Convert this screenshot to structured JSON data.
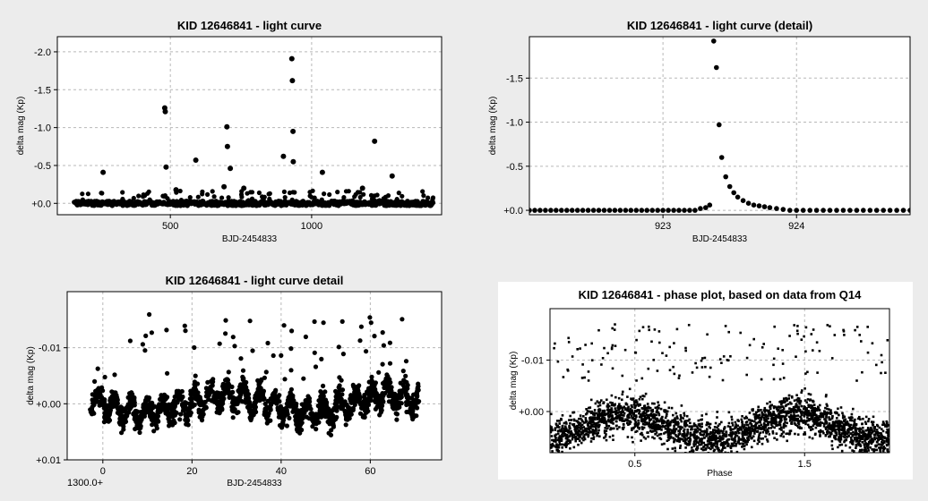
{
  "chart_data": [
    {
      "type": "scatter",
      "title": "KID 12646841 - light curve",
      "xlabel": "BJD-2454833",
      "ylabel": "delta mag (Kp)",
      "xlim": [
        100,
        1460
      ],
      "ylim": [
        -2.2,
        0.15
      ],
      "y_inverted": true,
      "xticks": [
        {
          "v": 500,
          "label": "500"
        },
        {
          "v": 1000,
          "label": "1000"
        }
      ],
      "yticks": [
        {
          "v": -2.0,
          "label": "-2.0"
        },
        {
          "v": -1.5,
          "label": "-1.5"
        },
        {
          "v": -1.0,
          "label": "-1.0"
        },
        {
          "v": -0.5,
          "label": "-0.5"
        },
        {
          "v": 0.0,
          "label": "+0.0"
        }
      ],
      "grid": true,
      "baseline": {
        "x_range": [
          160,
          1430
        ],
        "y_center": 0.0,
        "spread": 0.03
      },
      "points": [
        [
          262,
          -0.41
        ],
        [
          480,
          -1.26
        ],
        [
          482,
          -1.21
        ],
        [
          485,
          -0.48
        ],
        [
          590,
          -0.57
        ],
        [
          700,
          -1.01
        ],
        [
          702,
          -0.75
        ],
        [
          712,
          -0.46
        ],
        [
          900,
          -0.62
        ],
        [
          930,
          -1.91
        ],
        [
          932,
          -1.62
        ],
        [
          934,
          -0.95
        ],
        [
          935,
          -0.55
        ],
        [
          1038,
          -0.41
        ],
        [
          1223,
          -0.82
        ],
        [
          1285,
          -0.36
        ],
        [
          520,
          -0.18
        ],
        [
          690,
          -0.22
        ],
        [
          760,
          -0.2
        ],
        [
          1180,
          -0.2
        ]
      ]
    },
    {
      "type": "scatter",
      "title": "KID 12646841 - light curve (detail)",
      "xlabel": "BJD-2454833",
      "ylabel": "delta mag (Kp)",
      "xlim": [
        922.0,
        924.85
      ],
      "ylim": [
        -1.97,
        0.05
      ],
      "y_inverted": true,
      "xticks": [
        {
          "v": 923,
          "label": "923"
        },
        {
          "v": 924,
          "label": "924"
        }
      ],
      "yticks": [
        {
          "v": -1.5,
          "label": "-1.5"
        },
        {
          "v": -1.0,
          "label": "-1.0"
        },
        {
          "v": -0.5,
          "label": "-0.5"
        },
        {
          "v": 0.0,
          "label": "+0.0"
        }
      ],
      "grid": true,
      "points": [
        [
          922.0,
          0.0
        ],
        [
          922.04,
          0.0
        ],
        [
          922.08,
          0.0
        ],
        [
          922.12,
          0.0
        ],
        [
          922.16,
          0.0
        ],
        [
          922.2,
          0.0
        ],
        [
          922.24,
          0.0
        ],
        [
          922.28,
          0.0
        ],
        [
          922.32,
          0.0
        ],
        [
          922.36,
          0.0
        ],
        [
          922.4,
          0.0
        ],
        [
          922.44,
          0.0
        ],
        [
          922.48,
          0.0
        ],
        [
          922.52,
          0.0
        ],
        [
          922.56,
          0.0
        ],
        [
          922.6,
          0.0
        ],
        [
          922.64,
          0.0
        ],
        [
          922.68,
          0.0
        ],
        [
          922.72,
          0.0
        ],
        [
          922.76,
          0.0
        ],
        [
          922.8,
          0.0
        ],
        [
          922.84,
          0.0
        ],
        [
          922.88,
          0.0
        ],
        [
          922.92,
          0.0
        ],
        [
          922.96,
          0.0
        ],
        [
          923.0,
          0.0
        ],
        [
          923.04,
          0.0
        ],
        [
          923.08,
          0.0
        ],
        [
          923.12,
          0.0
        ],
        [
          923.16,
          0.0
        ],
        [
          923.2,
          0.0
        ],
        [
          923.24,
          0.0
        ],
        [
          923.28,
          -0.02
        ],
        [
          923.32,
          -0.03
        ],
        [
          923.35,
          -0.06
        ],
        [
          923.38,
          -1.92
        ],
        [
          923.4,
          -1.62
        ],
        [
          923.42,
          -0.97
        ],
        [
          923.44,
          -0.6
        ],
        [
          923.47,
          -0.38
        ],
        [
          923.5,
          -0.27
        ],
        [
          923.53,
          -0.2
        ],
        [
          923.56,
          -0.15
        ],
        [
          923.6,
          -0.11
        ],
        [
          923.64,
          -0.08
        ],
        [
          923.68,
          -0.06
        ],
        [
          923.72,
          -0.05
        ],
        [
          923.76,
          -0.04
        ],
        [
          923.8,
          -0.03
        ],
        [
          923.85,
          -0.02
        ],
        [
          923.9,
          -0.01
        ],
        [
          923.95,
          0.0
        ],
        [
          924.0,
          0.0
        ],
        [
          924.05,
          0.0
        ],
        [
          924.1,
          0.0
        ],
        [
          924.15,
          0.0
        ],
        [
          924.2,
          0.0
        ],
        [
          924.25,
          0.0
        ],
        [
          924.3,
          0.0
        ],
        [
          924.35,
          0.0
        ],
        [
          924.4,
          0.0
        ],
        [
          924.45,
          0.0
        ],
        [
          924.5,
          0.0
        ],
        [
          924.55,
          0.0
        ],
        [
          924.6,
          0.0
        ],
        [
          924.65,
          0.0
        ],
        [
          924.7,
          0.0
        ],
        [
          924.75,
          0.0
        ],
        [
          924.8,
          0.0
        ],
        [
          924.85,
          0.0
        ]
      ]
    },
    {
      "type": "scatter",
      "title": "KID 12646841 - light curve detail",
      "xlabel": "BJD-2454833",
      "ylabel": "delta mag (Kp)",
      "x_offset_label": "1300.0+",
      "xlim": [
        -8,
        76
      ],
      "ylim": [
        -0.02,
        0.01
      ],
      "y_inverted": true,
      "xticks": [
        {
          "v": 0,
          "label": "0"
        },
        {
          "v": 20,
          "label": "20"
        },
        {
          "v": 40,
          "label": "40"
        },
        {
          "v": 60,
          "label": "60"
        }
      ],
      "yticks": [
        {
          "v": -0.01,
          "label": "-0.01"
        },
        {
          "v": 0.0,
          "label": "+0.00"
        },
        {
          "v": 0.01,
          "label": "+0.01"
        }
      ],
      "grid": true,
      "model": {
        "x_range": [
          -3,
          71
        ],
        "amplitude": 0.0018,
        "period": 3.6,
        "trend_amplitude": 0.0015,
        "trend_period": 37,
        "noise": 0.0016,
        "n_points": 1500,
        "flare_count": 60,
        "flare_max": -0.016
      }
    },
    {
      "type": "scatter",
      "title": "KID 12646841 - phase plot, based on data from Q14",
      "xlabel": "Phase",
      "ylabel": "delta mag (Kp)",
      "xlim": [
        0.0,
        2.0
      ],
      "ylim": [
        -0.02,
        0.008
      ],
      "y_inverted": true,
      "xticks": [
        {
          "v": 0.5,
          "label": "0.5"
        },
        {
          "v": 1.5,
          "label": "1.5"
        }
      ],
      "yticks": [
        {
          "v": -0.01,
          "label": "-0.01"
        },
        {
          "v": 0.0,
          "label": "+0.00"
        }
      ],
      "grid": true,
      "model": {
        "x_range": [
          0.0,
          2.0
        ],
        "amplitude": 0.0025,
        "phase_of_min": 0.45,
        "noise": 0.0022,
        "n_points": 2600,
        "outlier_count": 140,
        "outlier_max": -0.017
      }
    }
  ]
}
